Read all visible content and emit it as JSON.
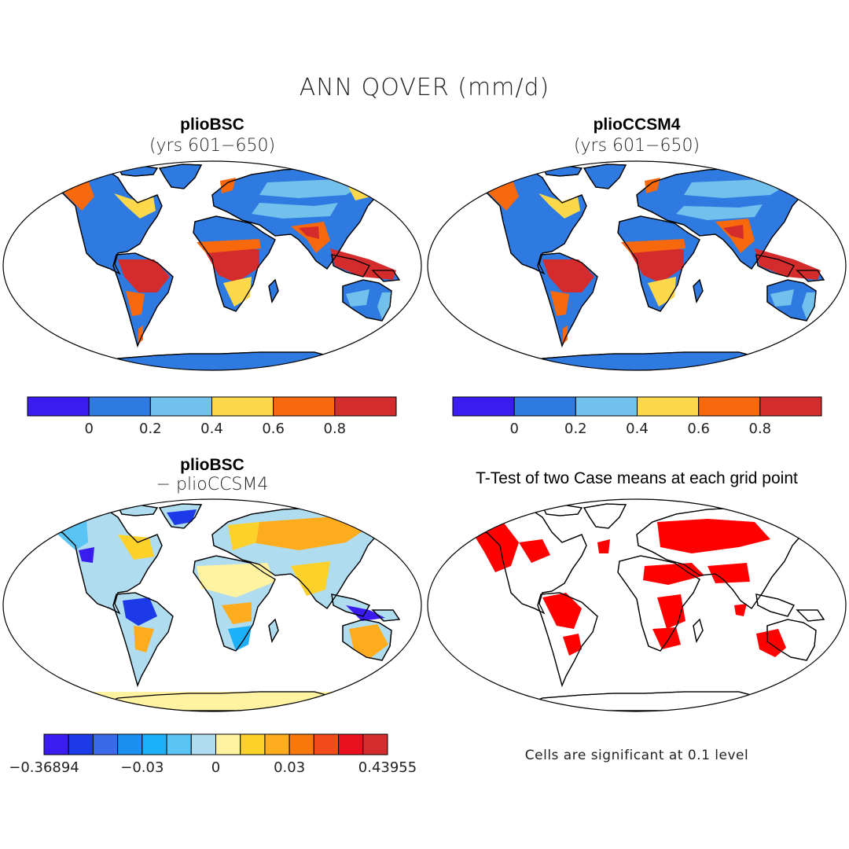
{
  "figure": {
    "title": "ANN QOVER (mm/d)"
  },
  "panels": [
    {
      "title": "plioBSC",
      "subtitle": "(yrs 601−650)"
    },
    {
      "title": "plioCCSM4",
      "subtitle": "(yrs 601−650)"
    },
    {
      "title": "plioBSC",
      "subtitle": "− plioCCSM4"
    },
    {
      "title": "T-Test of two Case means at each grid point"
    }
  ],
  "colorbar_main": {
    "colors": [
      "#3a1cf0",
      "#2f7ae0",
      "#72c0ec",
      "#fcd84a",
      "#f8680c",
      "#d42c2c"
    ],
    "tick_labels": [
      "0",
      "0.2",
      "0.4",
      "0.6",
      "0.8"
    ]
  },
  "colorbar_diff": {
    "colors": [
      "#3a1cf0",
      "#1c3ae8",
      "#3a6ae8",
      "#1c90f0",
      "#1cb0f8",
      "#5ac4f4",
      "#b0dcf0",
      "#fff2a0",
      "#fcd22a",
      "#fcac1c",
      "#f8780c",
      "#f44a1c",
      "#e8101c",
      "#d42c2c"
    ],
    "tick_labels": [
      "−0.36894",
      "−0.03",
      "0",
      "0.03",
      "0.43955"
    ]
  },
  "significance_note": "Cells are significant at 0.1 level",
  "map_palette": {
    "ocean": "#ffffff",
    "coast": "#000000",
    "significant": "#ff0000"
  }
}
